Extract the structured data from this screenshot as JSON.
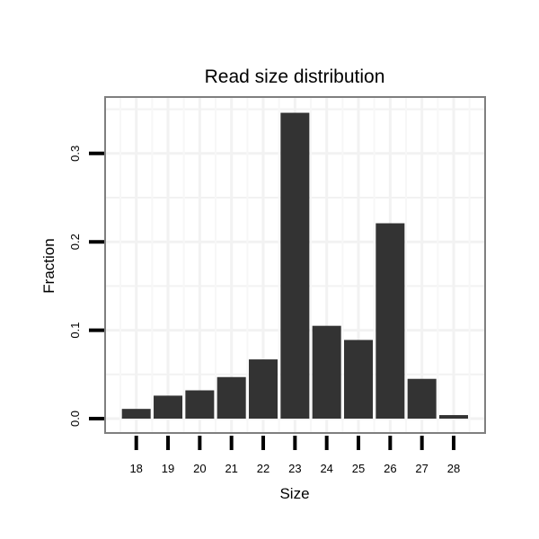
{
  "chart_data": {
    "type": "bar",
    "title": "Read size distribution",
    "xlabel": "Size",
    "ylabel": "Fraction",
    "categories": [
      "18",
      "19",
      "20",
      "21",
      "22",
      "23",
      "24",
      "25",
      "26",
      "27",
      "28"
    ],
    "values": [
      0.011,
      0.026,
      0.032,
      0.047,
      0.067,
      0.346,
      0.105,
      0.089,
      0.221,
      0.045,
      0.004
    ],
    "yticks": [
      0.0,
      0.1,
      0.2,
      0.3
    ],
    "ytick_labels": [
      "0.0",
      "0.1",
      "0.2",
      "0.3"
    ],
    "ylim": [
      -0.0115,
      0.362
    ],
    "grid": true,
    "bar_color": "#333333"
  }
}
